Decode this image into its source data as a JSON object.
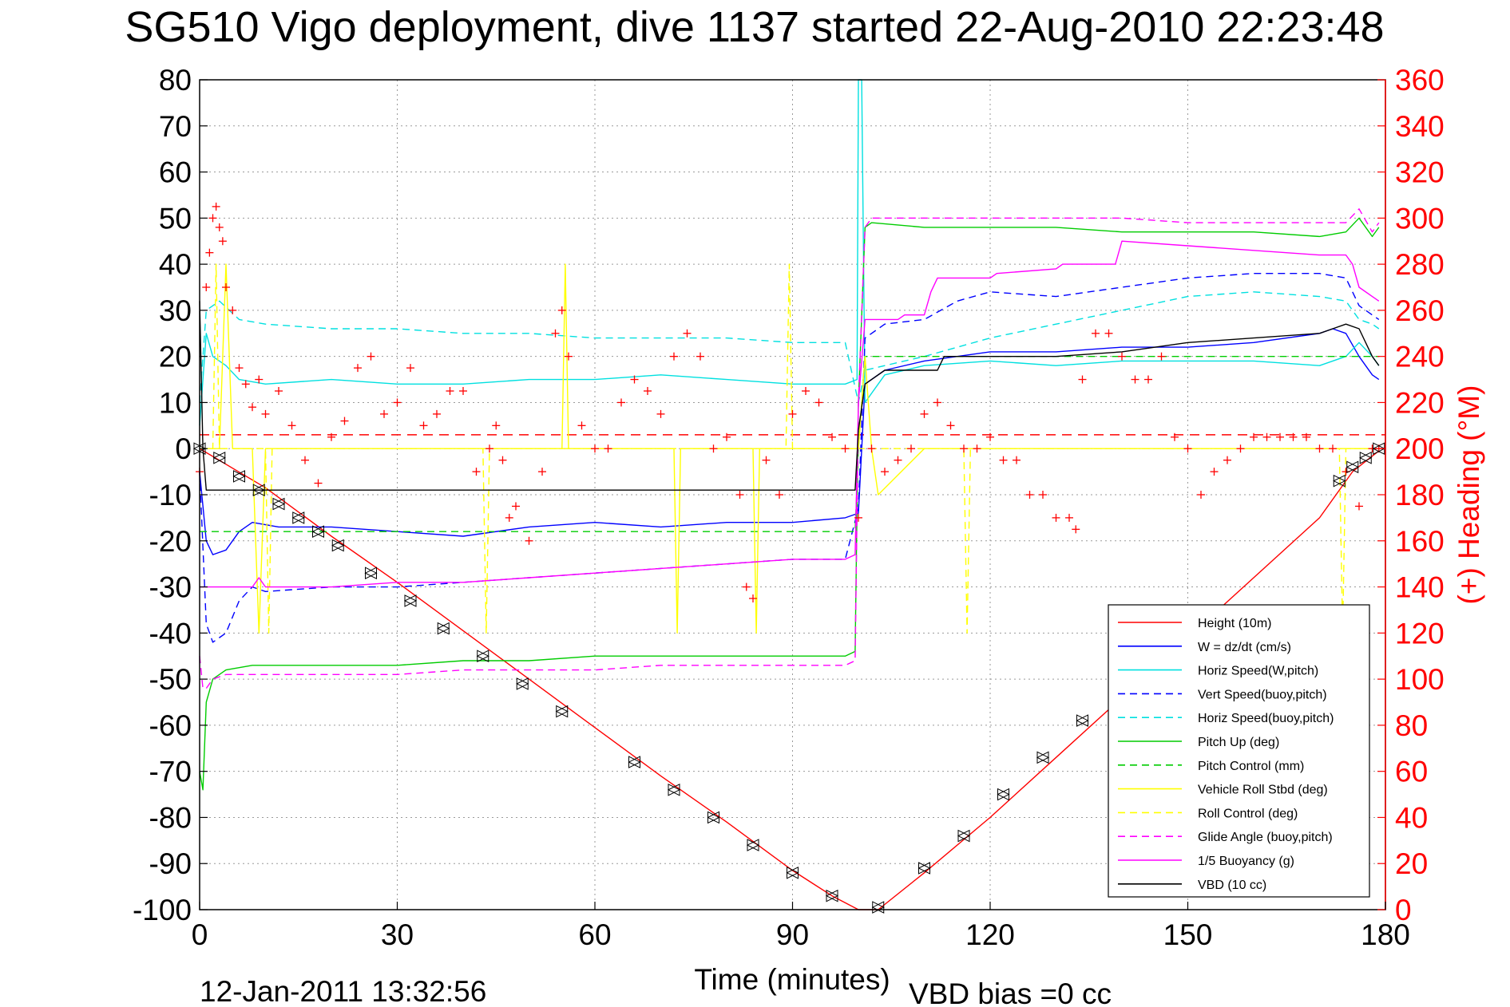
{
  "chart_data": {
    "type": "line",
    "title": "SG510 Vigo deployment, dive 1137 started 22-Aug-2010 22:23:48",
    "xlabel": "Time (minutes)",
    "ylabel": "",
    "y2label": "(+) Heading (°M)",
    "xlim": [
      0,
      180
    ],
    "ylim": [
      -100,
      80
    ],
    "y2lim": [
      0,
      360
    ],
    "xticks": [
      "0",
      "30",
      "60",
      "90",
      "120",
      "150",
      "180"
    ],
    "yticks": [
      "80",
      "70",
      "60",
      "50",
      "40",
      "30",
      "20",
      "10",
      "0",
      "-10",
      "-20",
      "-30",
      "-40",
      "-50",
      "-60",
      "-70",
      "-80",
      "-90",
      "-100"
    ],
    "y2ticks": [
      "360",
      "340",
      "320",
      "300",
      "280",
      "260",
      "240",
      "220",
      "200",
      "180",
      "160",
      "140",
      "120",
      "100",
      "80",
      "60",
      "40",
      "20",
      "0"
    ],
    "grid": true,
    "legend_position": "bottom-right",
    "footer_date": "12-Jan-2011 13:32:56",
    "footer_bias": "VBD bias =0 cc",
    "colors": {
      "red": "#ff0000",
      "blue": "#0000ff",
      "cyan": "#00e0e0",
      "green": "#00cc00",
      "yellow": "#ffff00",
      "magenta": "#ff00ff",
      "black": "#000000"
    },
    "series": [
      {
        "name": "Height (10m)",
        "color": "#ff0000",
        "style": "solid",
        "x": [
          0,
          10,
          20,
          30,
          40,
          50,
          60,
          70,
          80,
          90,
          96,
          100,
          103,
          110,
          120,
          130,
          140,
          150,
          160,
          170,
          175,
          179
        ],
        "y": [
          0,
          -8.5,
          -19,
          -29,
          -39.5,
          -50,
          -60.5,
          -71,
          -81,
          -91.5,
          -97,
          -100,
          -100,
          -92,
          -80,
          -67,
          -54,
          -41,
          -28,
          -15,
          -5,
          -0.5
        ]
      },
      {
        "name": "W = dz/dt (cm/s)",
        "color": "#0000ff",
        "style": "solid",
        "x": [
          0,
          1,
          2,
          4,
          6,
          8,
          12,
          20,
          30,
          40,
          50,
          60,
          70,
          80,
          90,
          98,
          100,
          101,
          104,
          110,
          120,
          130,
          140,
          150,
          160,
          170,
          172,
          174,
          176,
          178,
          179
        ],
        "y": [
          -5,
          -20,
          -23,
          -22,
          -18,
          -16,
          -17,
          -17,
          -18,
          -19,
          -17,
          -16,
          -17,
          -16,
          -16,
          -15,
          -14,
          14,
          17,
          19,
          21,
          21,
          22,
          22,
          23,
          25,
          26,
          25,
          20,
          16,
          15
        ]
      },
      {
        "name": "Horiz Speed(W,pitch)",
        "color": "#00e0e0",
        "style": "solid",
        "x": [
          0,
          1,
          2,
          4,
          6,
          10,
          20,
          30,
          40,
          50,
          60,
          70,
          80,
          90,
          98,
          99.8,
          100,
          100.5,
          101,
          104,
          110,
          120,
          130,
          140,
          150,
          160,
          170,
          174,
          176,
          178,
          179
        ],
        "y": [
          5,
          25,
          20,
          18,
          15,
          14,
          15,
          14,
          14,
          15,
          15,
          16,
          15,
          14,
          14,
          15,
          80,
          80,
          10,
          16,
          18,
          19,
          18,
          19,
          19,
          19,
          18,
          20,
          23,
          20,
          18
        ]
      },
      {
        "name": "Vert Speed(buoy,pitch)",
        "color": "#0000ff",
        "style": "dashed",
        "x": [
          0,
          1,
          2,
          4,
          6,
          8,
          10,
          20,
          30,
          40,
          50,
          60,
          70,
          80,
          90,
          98,
          100,
          101,
          104,
          110,
          115,
          120,
          130,
          140,
          150,
          160,
          170,
          174,
          176,
          178,
          179
        ],
        "y": [
          -5,
          -38,
          -42,
          -40,
          -33,
          -30,
          -31,
          -30,
          -30,
          -29,
          -28,
          -27,
          -26,
          -25,
          -24,
          -24,
          -13,
          24,
          27,
          28,
          32,
          34,
          33,
          35,
          37,
          38,
          38,
          37,
          31,
          29,
          28
        ]
      },
      {
        "name": "Horiz Speed(buoy,pitch)",
        "color": "#00e0e0",
        "style": "dashed",
        "x": [
          0,
          1,
          3,
          6,
          10,
          20,
          30,
          40,
          50,
          60,
          70,
          80,
          90,
          98,
          100,
          101,
          104,
          110,
          120,
          130,
          140,
          150,
          160,
          170,
          174,
          176,
          178,
          179
        ],
        "y": [
          10,
          30,
          32,
          28,
          27,
          26,
          26,
          25,
          25,
          24,
          24,
          24,
          23,
          23,
          10,
          17,
          18,
          20,
          24,
          27,
          30,
          33,
          34,
          33,
          32,
          28,
          27,
          26
        ]
      },
      {
        "name": "Pitch Up (deg)",
        "color": "#00cc00",
        "style": "solid",
        "x": [
          0,
          0.5,
          1,
          2,
          4,
          8,
          20,
          30,
          40,
          50,
          60,
          70,
          80,
          90,
          98,
          99.5,
          100,
          101,
          102,
          110,
          120,
          130,
          140,
          150,
          160,
          170,
          174,
          176,
          178,
          179
        ],
        "y": [
          -70,
          -74,
          -55,
          -50,
          -48,
          -47,
          -47,
          -47,
          -46,
          -46,
          -45,
          -45,
          -45,
          -45,
          -45,
          -44,
          10,
          48,
          49,
          48,
          48,
          48,
          47,
          47,
          47,
          46,
          47,
          50,
          46,
          48
        ]
      },
      {
        "name": "Pitch Control (mm)",
        "color": "#00cc00",
        "style": "dashed",
        "x": [
          0,
          1,
          3,
          6,
          10,
          20,
          30,
          40,
          50,
          60,
          70,
          80,
          90,
          98,
          99.5,
          100,
          101,
          104,
          110,
          120,
          130,
          140,
          150,
          160,
          170,
          174,
          176,
          178,
          179
        ],
        "y": [
          -18,
          -18,
          -18,
          -18,
          -18,
          -18,
          -18,
          -18,
          -18,
          -18,
          -18,
          -18,
          -18,
          -18,
          -18,
          0,
          20,
          20,
          20,
          20,
          20,
          20,
          20,
          20,
          20,
          20,
          20,
          20,
          20
        ]
      },
      {
        "name": "Vehicle Roll Stbd (deg)",
        "color": "#ffff00",
        "style": "solid",
        "x": [
          0,
          3,
          4,
          5,
          8,
          9,
          10,
          20,
          30,
          40,
          50,
          55,
          55.5,
          56,
          60,
          70,
          72,
          72.5,
          73,
          80,
          84,
          84.5,
          85,
          90,
          98,
          100,
          101,
          102,
          103,
          110,
          120,
          130,
          140,
          150,
          160,
          170,
          178,
          179
        ],
        "y": [
          0,
          0,
          40,
          0,
          0,
          -40,
          0,
          0,
          0,
          0,
          0,
          0,
          40,
          0,
          0,
          0,
          0,
          -40,
          0,
          0,
          0,
          -40,
          0,
          0,
          0,
          0,
          20,
          0,
          -10,
          0,
          0,
          0,
          0,
          0,
          0,
          0,
          0,
          0
        ]
      },
      {
        "name": "Roll Control (deg)",
        "color": "#ffff00",
        "style": "dashed",
        "x": [
          0,
          2,
          2.5,
          3,
          10,
          10.5,
          11,
          20,
          30,
          43,
          43.5,
          44,
          50,
          60,
          70,
          80,
          89,
          89.5,
          90,
          98,
          100,
          110,
          116,
          116.5,
          117,
          130,
          140,
          150,
          160,
          170,
          173,
          173.5,
          174,
          179
        ],
        "y": [
          0,
          0,
          40,
          0,
          0,
          -40,
          0,
          0,
          0,
          0,
          -40,
          0,
          0,
          0,
          0,
          0,
          0,
          40,
          0,
          0,
          0,
          0,
          0,
          -40,
          0,
          0,
          0,
          0,
          0,
          0,
          0,
          -40,
          0,
          0
        ]
      },
      {
        "name": "Glide Angle (buoy,pitch)",
        "color": "#ff00ff",
        "style": "dashed",
        "x": [
          0,
          0.5,
          1,
          2,
          4,
          8,
          20,
          30,
          40,
          50,
          60,
          70,
          80,
          90,
          98,
          99.5,
          100,
          101,
          102,
          110,
          120,
          130,
          140,
          150,
          160,
          170,
          174,
          176,
          178,
          179
        ],
        "y": [
          -45,
          -52,
          -52,
          -50,
          -49,
          -49,
          -49,
          -49,
          -48,
          -48,
          -48,
          -47,
          -47,
          -47,
          -47,
          -46,
          10,
          48,
          50,
          50,
          50,
          50,
          50,
          49,
          49,
          49,
          49,
          52,
          47,
          49
        ]
      },
      {
        "name": "1/5 Buoyancy (g)",
        "color": "#ff00ff",
        "style": "solid",
        "x": [
          0,
          1,
          5,
          8,
          9,
          10,
          20,
          30,
          40,
          50,
          60,
          70,
          80,
          90,
          98,
          99.5,
          100,
          101,
          106,
          107,
          110,
          111,
          112,
          120,
          121,
          130,
          131,
          139,
          140,
          150,
          160,
          170,
          174,
          175,
          176,
          178,
          179
        ],
        "y": [
          -30,
          -30,
          -30,
          -30,
          -28,
          -30,
          -30,
          -29,
          -29,
          -28,
          -27,
          -26,
          -25,
          -24,
          -24,
          -23,
          10,
          28,
          28,
          29,
          29,
          34,
          37,
          37,
          38,
          39,
          40,
          40,
          45,
          44,
          43,
          42,
          42,
          40,
          35,
          33,
          32
        ]
      },
      {
        "name": "VBD (10 cc)",
        "color": "#000000",
        "style": "solid",
        "x": [
          0,
          0.5,
          1,
          3,
          10,
          20,
          30,
          40,
          50,
          60,
          70,
          80,
          90,
          98,
          99.5,
          100,
          101,
          104,
          110,
          112,
          113,
          120,
          130,
          140,
          150,
          160,
          170,
          172,
          174,
          176,
          178,
          179
        ],
        "y": [
          32,
          0,
          -9,
          -9,
          -9,
          -9,
          -9,
          -9,
          -9,
          -9,
          -9,
          -9,
          -9,
          -9,
          -9,
          4,
          14,
          17,
          17,
          17,
          20,
          20,
          20,
          21,
          23,
          24,
          25,
          26,
          27,
          26,
          20,
          18
        ]
      }
    ]
  },
  "legend": {
    "items": [
      {
        "label": "Height (10m)",
        "color": "#ff0000",
        "style": "solid"
      },
      {
        "label": "W = dz/dt (cm/s)",
        "color": "#0000ff",
        "style": "solid"
      },
      {
        "label": "Horiz Speed(W,pitch)",
        "color": "#00e0e0",
        "style": "solid"
      },
      {
        "label": "Vert Speed(buoy,pitch)",
        "color": "#0000ff",
        "style": "dashed"
      },
      {
        "label": "Horiz Speed(buoy,pitch)",
        "color": "#00e0e0",
        "style": "dashed"
      },
      {
        "label": "Pitch Up (deg)",
        "color": "#00cc00",
        "style": "solid"
      },
      {
        "label": "Pitch Control (mm)",
        "color": "#00cc00",
        "style": "dashed"
      },
      {
        "label": "Vehicle Roll Stbd (deg)",
        "color": "#ffff00",
        "style": "solid"
      },
      {
        "label": "Roll Control (deg)",
        "color": "#ffff00",
        "style": "dashed"
      },
      {
        "label": "Glide Angle (buoy,pitch)",
        "color": "#ff00ff",
        "style": "dashed"
      },
      {
        "label": "1/5 Buoyancy (g)",
        "color": "#ff00ff",
        "style": "solid"
      },
      {
        "label": "VBD (10 cc)",
        "color": "#000000",
        "style": "solid"
      }
    ]
  },
  "heading": {
    "mean_line_y2": 206,
    "marker": "+",
    "color": "#ff0000",
    "x": [
      0,
      1,
      1.5,
      2,
      2.5,
      3,
      3.5,
      4,
      5,
      6,
      7,
      8,
      9,
      10,
      12,
      14,
      16,
      18,
      20,
      22,
      24,
      26,
      28,
      30,
      32,
      34,
      36,
      38,
      40,
      42,
      44,
      45,
      46,
      47,
      48,
      50,
      52,
      54,
      55,
      56,
      58,
      60,
      62,
      64,
      66,
      68,
      70,
      72,
      74,
      76,
      78,
      80,
      82,
      83,
      84,
      86,
      88,
      90,
      92,
      94,
      96,
      98,
      100,
      102,
      104,
      106,
      108,
      110,
      112,
      114,
      116,
      118,
      120,
      122,
      124,
      126,
      128,
      130,
      132,
      133,
      134,
      136,
      138,
      140,
      142,
      144,
      146,
      148,
      150,
      152,
      154,
      156,
      158,
      160,
      162,
      164,
      166,
      168,
      170,
      172,
      174,
      176,
      178,
      179
    ],
    "y": [
      190,
      270,
      285,
      300,
      305,
      296,
      290,
      270,
      260,
      235,
      228,
      218,
      230,
      215,
      225,
      210,
      195,
      185,
      205,
      212,
      235,
      240,
      215,
      220,
      235,
      210,
      215,
      225,
      225,
      190,
      200,
      210,
      195,
      170,
      175,
      160,
      190,
      250,
      260,
      240,
      210,
      200,
      200,
      220,
      230,
      225,
      215,
      240,
      250,
      240,
      200,
      205,
      180,
      140,
      135,
      195,
      180,
      215,
      225,
      220,
      205,
      200,
      170,
      200,
      190,
      195,
      200,
      215,
      220,
      210,
      200,
      200,
      205,
      195,
      195,
      180,
      180,
      170,
      170,
      165,
      230,
      250,
      250,
      240,
      230,
      230,
      240,
      205,
      200,
      180,
      190,
      195,
      200,
      205,
      205,
      205,
      205,
      205,
      200,
      200,
      190,
      175,
      200,
      200
    ]
  },
  "depth_markers": {
    "x": [
      0,
      3,
      6,
      9,
      12,
      15,
      18,
      21,
      26,
      32,
      37,
      43,
      49,
      55,
      66,
      72,
      78,
      84,
      90,
      96,
      103,
      110,
      116,
      122,
      128,
      134,
      173,
      175,
      177,
      179
    ],
    "y": [
      0,
      -2,
      -6,
      -9,
      -12,
      -15,
      -18,
      -21,
      -27,
      -33,
      -39,
      -45,
      -51,
      -57,
      -68,
      -74,
      -80,
      -86,
      -92,
      -97,
      -99.5,
      -91,
      -84,
      -75,
      -67,
      -59,
      -7,
      -4,
      -2,
      0
    ]
  }
}
